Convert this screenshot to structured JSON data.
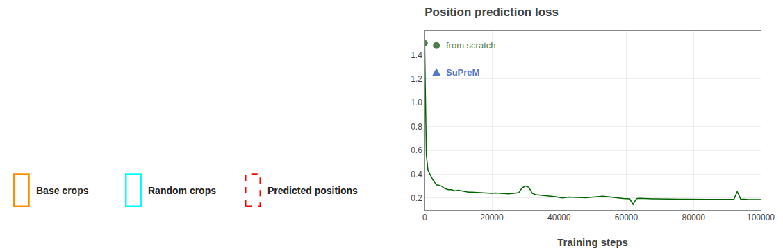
{
  "chart_data": {
    "type": "line",
    "title": "Position prediction loss",
    "x_label": "Training steps",
    "x": [
      0,
      500,
      1000,
      1500,
      2000,
      2500,
      3000,
      3500,
      4000,
      5000,
      6000,
      7000,
      8000,
      9000,
      10000,
      11000,
      12000,
      13000,
      14000,
      15000,
      16000,
      17000,
      18000,
      19000,
      20000,
      21000,
      22000,
      23000,
      24000,
      25000,
      26000,
      27000,
      28000,
      29000,
      30000,
      31000,
      32000,
      33000,
      34000,
      35000,
      36000,
      37000,
      38000,
      39000,
      40000,
      41000,
      42000,
      43000,
      44000,
      45000,
      46000,
      47000,
      48000,
      49000,
      50000,
      51000,
      52000,
      53000,
      54000,
      55000,
      56000,
      57000,
      58000,
      59000,
      60000,
      61000,
      62000,
      63000,
      64000,
      65000,
      66000,
      67000,
      68000,
      69000,
      70000,
      72000,
      74000,
      76000,
      78000,
      80000,
      82000,
      84000,
      86000,
      88000,
      90000,
      92000,
      93000,
      94000,
      96000,
      98000,
      100000
    ],
    "series": [
      {
        "color": "#006400",
        "values": [
          1.5,
          0.56,
          0.43,
          0.4,
          0.37,
          0.35,
          0.33,
          0.31,
          0.31,
          0.3,
          0.28,
          0.27,
          0.27,
          0.26,
          0.265,
          0.26,
          0.255,
          0.25,
          0.25,
          0.248,
          0.245,
          0.243,
          0.24,
          0.238,
          0.24,
          0.242,
          0.24,
          0.238,
          0.236,
          0.235,
          0.238,
          0.24,
          0.245,
          0.285,
          0.3,
          0.29,
          0.24,
          0.228,
          0.225,
          0.222,
          0.22,
          0.218,
          0.216,
          0.21,
          0.205,
          0.2,
          0.205,
          0.208,
          0.206,
          0.204,
          0.202,
          0.2,
          0.202,
          0.204,
          0.206,
          0.208,
          0.21,
          0.215,
          0.212,
          0.208,
          0.204,
          0.2,
          0.198,
          0.196,
          0.195,
          0.193,
          0.147,
          0.195,
          0.198,
          0.196,
          0.195,
          0.194,
          0.193,
          0.193,
          0.192,
          0.191,
          0.191,
          0.19,
          0.19,
          0.19,
          0.19,
          0.189,
          0.188,
          0.188,
          0.188,
          0.188,
          0.255,
          0.192,
          0.188,
          0.187,
          0.187
        ]
      }
    ],
    "xlim": [
      0,
      100000
    ],
    "xticks": [
      0,
      20000,
      40000,
      60000,
      80000,
      100000
    ],
    "ylim": [
      0.1,
      1.6
    ],
    "yticks": [
      0.2,
      0.4,
      0.6,
      0.8,
      {
        "value": 1.0,
        "label": "1.0"
      },
      1.2,
      1.4
    ],
    "grid": true,
    "annotations": [
      {
        "text": "from scratch",
        "color": "#4d7d4d",
        "marker": "circle"
      },
      {
        "text": "SuPreM",
        "color": "#5577cc",
        "marker": "triangle"
      },
      {
        "text": "Base crops",
        "color": "#FF8C00",
        "marker": "square"
      },
      {
        "text": "Random crops",
        "color": "#00FFFF",
        "marker": "square"
      },
      {
        "text": "Predicted positions",
        "color": "#FF0000",
        "marker": "square",
        "line_style": "dashed"
      }
    ]
  }
}
